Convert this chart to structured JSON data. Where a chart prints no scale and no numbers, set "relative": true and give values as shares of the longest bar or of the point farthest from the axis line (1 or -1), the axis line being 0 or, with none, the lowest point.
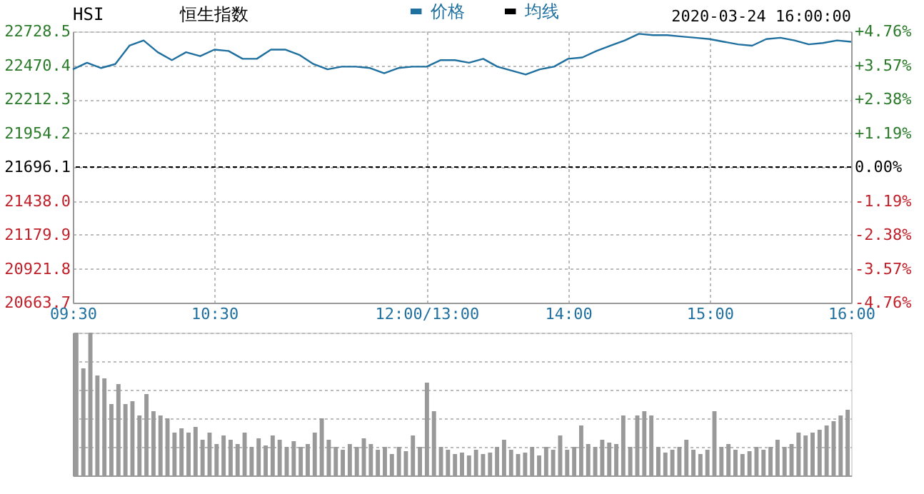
{
  "chart_data": [
    {
      "type": "line",
      "title": "HSI",
      "subtitle": "恒生指数",
      "annotations": [
        "2020-03-24 16:00:00"
      ],
      "categories": [
        "09:30",
        null,
        null,
        null,
        null,
        null,
        null,
        null,
        null,
        null,
        "10:30",
        null,
        null,
        null,
        null,
        null,
        null,
        null,
        null,
        null,
        null,
        null,
        null,
        null,
        null,
        "12:00/13:00",
        null,
        null,
        null,
        null,
        null,
        null,
        null,
        null,
        null,
        "14:00",
        null,
        null,
        null,
        null,
        null,
        null,
        null,
        null,
        null,
        "15:00",
        null,
        null,
        null,
        null,
        null,
        null,
        null,
        null,
        null,
        "16:00"
      ],
      "series": [
        {
          "name": "价格",
          "color": "#1f6f9f",
          "values": [
            22440,
            22490,
            22450,
            22480,
            22620,
            22660,
            22570,
            22510,
            22570,
            22540,
            22590,
            22580,
            22520,
            22520,
            22590,
            22590,
            22550,
            22480,
            22440,
            22460,
            22460,
            22450,
            22410,
            22450,
            22460,
            22460,
            22510,
            22510,
            22490,
            22520,
            22460,
            22430,
            22400,
            22440,
            22460,
            22520,
            22530,
            22580,
            22620,
            22660,
            22710,
            22700,
            22700,
            22690,
            22680,
            22670,
            22650,
            22630,
            22620,
            22670,
            22680,
            22660,
            22630,
            22640,
            22660,
            22650
          ]
        },
        {
          "name": "均线",
          "color": "#000000",
          "values": [
            null,
            null,
            null,
            null,
            null,
            null,
            null,
            null,
            null,
            null,
            null,
            null,
            null,
            null,
            null,
            null,
            null,
            null,
            null,
            null,
            null,
            null,
            null,
            null,
            null,
            null,
            null,
            null,
            null,
            null,
            null,
            null,
            null,
            null,
            null,
            null,
            null,
            null,
            null,
            null,
            null,
            null,
            null,
            null,
            null,
            null,
            null,
            null,
            null,
            null,
            null,
            null,
            null,
            null,
            null,
            null
          ]
        }
      ],
      "ylim": [
        20663.7,
        22728.5
      ],
      "yticks": [
        20663.7,
        20921.8,
        21179.9,
        {
          "value": 21438,
          "label": "21438.0"
        },
        21696.1,
        21954.2,
        22212.3,
        22470.4,
        22728.5
      ],
      "y2lim": [
        -4.76,
        4.76
      ],
      "y2ticks": [
        {
          "value": -4.76,
          "label": "-4.76%"
        },
        {
          "value": -3.57,
          "label": "-3.57%"
        },
        {
          "value": -2.38,
          "label": "-2.38%"
        },
        {
          "value": -1.19,
          "label": "-1.19%"
        },
        {
          "value": 0,
          "label": "0.00%"
        },
        {
          "value": 1.19,
          "label": "+1.19%"
        },
        {
          "value": 2.38,
          "label": "+2.38%"
        },
        {
          "value": 3.57,
          "label": "+3.57%"
        },
        {
          "value": 4.76,
          "label": "+4.76%"
        }
      ],
      "ref_lines": [
        {
          "axis": "y2",
          "value": 0,
          "color": "#000000",
          "line_style": "dashed"
        }
      ],
      "grid": true,
      "legend": "top"
    },
    {
      "type": "bar",
      "relative": true,
      "color": "#999999",
      "grid": "y",
      "categories": [
        null,
        null,
        null,
        null,
        null,
        null,
        null,
        null,
        null,
        null,
        null,
        null,
        null,
        null,
        null,
        null,
        null,
        null,
        null,
        null,
        null,
        null,
        null,
        null,
        null,
        null,
        null,
        null,
        null,
        null,
        null,
        null,
        null,
        null,
        null,
        null,
        null,
        null,
        null,
        null,
        null,
        null,
        null,
        null,
        null,
        null,
        null,
        null,
        null,
        null,
        null,
        null,
        null,
        null,
        null,
        null,
        null,
        null,
        null,
        null,
        null,
        null,
        null,
        null,
        null,
        null,
        null,
        null,
        null,
        null,
        null,
        null,
        null,
        null,
        null,
        null,
        null,
        null,
        null,
        null,
        null,
        null,
        null,
        null,
        null,
        null,
        null,
        null,
        null,
        null,
        null,
        null,
        null,
        null,
        null,
        null,
        null,
        null,
        null,
        null,
        null,
        null,
        null,
        null,
        null,
        null,
        null,
        null,
        null,
        null,
        null
      ],
      "values": [
        1.0,
        0.75,
        1.0,
        0.7,
        0.68,
        0.5,
        0.64,
        0.5,
        0.52,
        0.42,
        0.57,
        0.45,
        0.42,
        0.4,
        0.3,
        0.33,
        0.3,
        0.34,
        0.25,
        0.3,
        0.22,
        0.28,
        0.25,
        0.22,
        0.3,
        0.2,
        0.26,
        0.21,
        0.28,
        0.25,
        0.2,
        0.24,
        0.2,
        0.22,
        0.3,
        0.4,
        0.25,
        0.2,
        0.18,
        0.22,
        0.2,
        0.26,
        0.22,
        0.18,
        0.2,
        0.15,
        0.2,
        0.17,
        0.28,
        0.2,
        0.65,
        0.45,
        0.2,
        0.18,
        0.15,
        0.16,
        0.14,
        0.18,
        0.15,
        0.16,
        0.2,
        0.25,
        0.18,
        0.15,
        0.16,
        0.2,
        0.14,
        0.2,
        0.18,
        0.28,
        0.18,
        0.2,
        0.35,
        0.22,
        0.2,
        0.25,
        0.23,
        0.22,
        0.42,
        0.2,
        0.42,
        0.45,
        0.42,
        0.2,
        0.16,
        0.18,
        0.2,
        0.25,
        0.18,
        0.15,
        0.18,
        0.45,
        0.2,
        0.22,
        0.18,
        0.15,
        0.17,
        0.2,
        0.18,
        0.2,
        0.25,
        0.2,
        0.22,
        0.3,
        0.28,
        0.3,
        0.32,
        0.35,
        0.38,
        0.42,
        0.46
      ]
    }
  ]
}
